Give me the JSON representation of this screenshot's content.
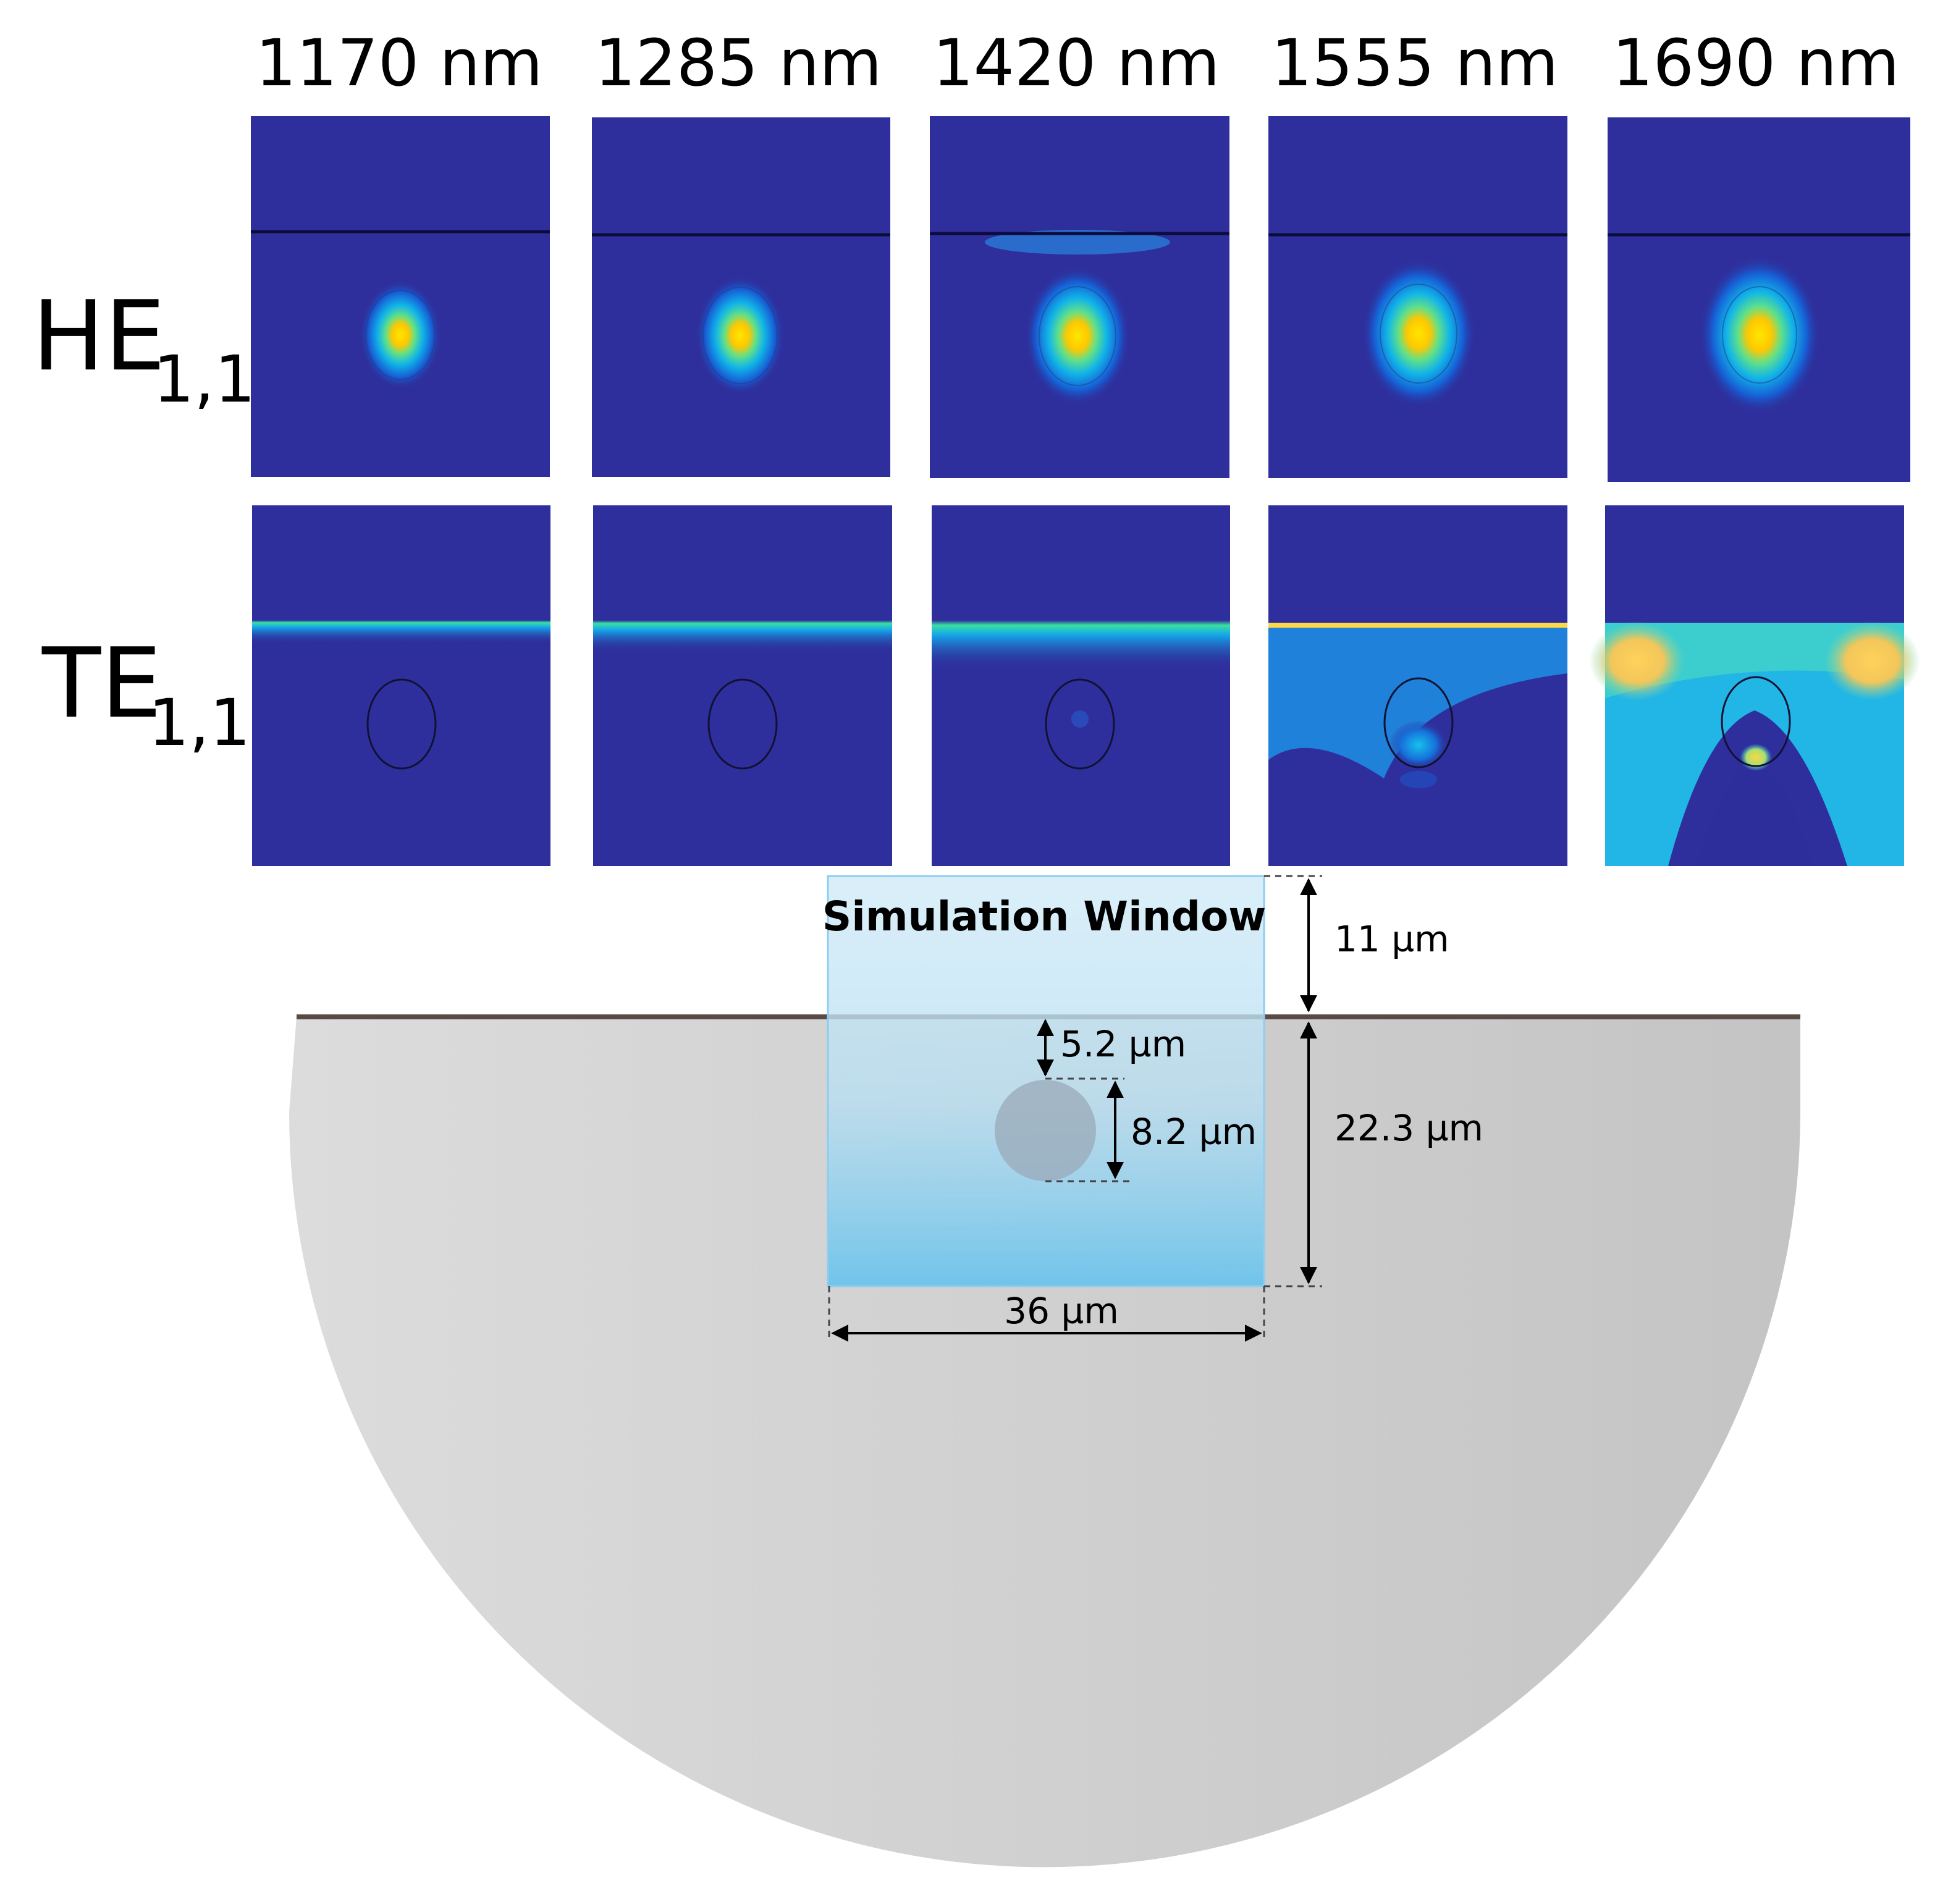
{
  "wavelengths": [
    "1170 nm",
    "1285 nm",
    "1420 nm",
    "1555 nm",
    "1690 nm"
  ],
  "modes": [
    {
      "base": "HE",
      "sub": "1,1"
    },
    {
      "base": "TE",
      "sub": "1,1"
    }
  ],
  "schematic": {
    "window_label": "Simulation Window",
    "dim_top": "11 µm",
    "dim_depth": "5.2 µm",
    "dim_core": "8.2 µm",
    "dim_bottom": "22.3 µm",
    "dim_width": "36 µm"
  },
  "colors": {
    "field_background": "#2e2f9c",
    "field_peak": "#ffe600",
    "fiber_gray": "#cdcdcd",
    "window_blue": "#7ec8ee"
  }
}
